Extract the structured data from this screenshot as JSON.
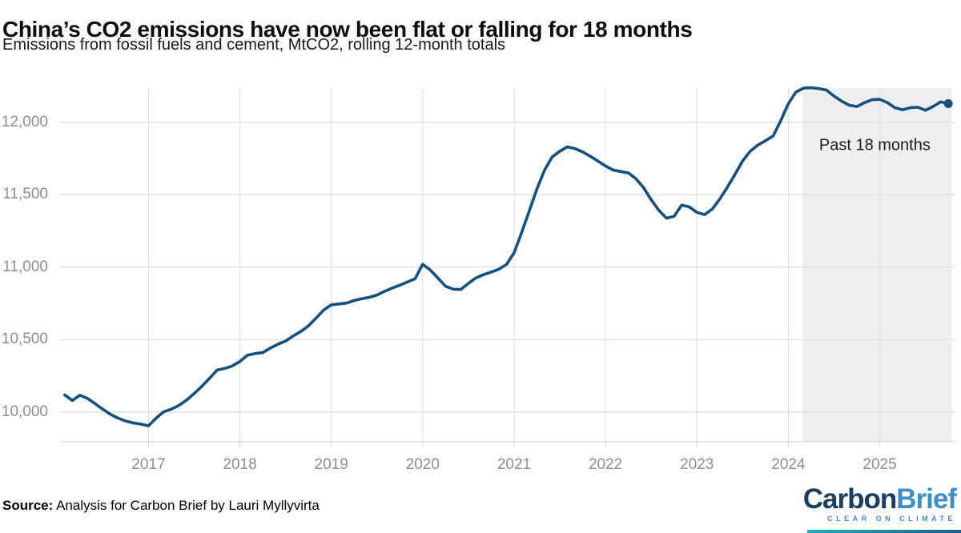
{
  "chart": {
    "title": "China’s CO2 emissions have now been flat or falling for 18 months",
    "subtitle": "Emissions from fossil fuels and cement, MtCO2, rolling 12-month totals",
    "annotation_label": "Past 18 months"
  },
  "footer": {
    "source_label": "Source:",
    "source_text": " Analysis for Carbon Brief by Lauri Myllyvirta"
  },
  "logo": {
    "word_dark": "Carbon",
    "word_light": "Brief",
    "tagline": "CLEAR ON CLIMATE",
    "color_dark": "#1b3e5f",
    "color_light": "#3f8dc6",
    "bar_gradient_left": "#19b4c8",
    "bar_gradient_right": "#1b5e93"
  },
  "chart_data": {
    "type": "line",
    "title": "China’s CO2 emissions have now been flat or falling for 18 months",
    "subtitle": "Emissions from fossil fuels and cement, MtCO2, rolling 12-month totals",
    "ylabel": "MtCO2, rolling 12-month total",
    "xlabel": "",
    "grid": true,
    "legend": "none",
    "line_color": "#15507e",
    "shade_color": "#eeeeee",
    "ylim": [
      9800,
      12280
    ],
    "xlim": [
      2016.03,
      2025.83
    ],
    "y_ticks": [
      {
        "value": 10000,
        "label": "10,000"
      },
      {
        "value": 10500,
        "label": "10,500"
      },
      {
        "value": 11000,
        "label": "11,000"
      },
      {
        "value": 11500,
        "label": "11,500"
      },
      {
        "value": 12000,
        "label": "12,000"
      }
    ],
    "x_ticks": [
      {
        "value": 2017,
        "label": "2017"
      },
      {
        "value": 2018,
        "label": "2018"
      },
      {
        "value": 2019,
        "label": "2019"
      },
      {
        "value": 2020,
        "label": "2020"
      },
      {
        "value": 2021,
        "label": "2021"
      },
      {
        "value": 2022,
        "label": "2022"
      },
      {
        "value": 2023,
        "label": "2023"
      },
      {
        "value": 2024,
        "label": "2024"
      },
      {
        "value": 2025,
        "label": "2025"
      }
    ],
    "highlight_region": {
      "label": "Past 18 months",
      "start": 2024.155,
      "end": 2025.79
    },
    "end_marker": true,
    "series": [
      {
        "name": "CO2 emissions from fossil fuels and cement (MtCO2, rolling 12-month total)",
        "points": [
          [
            2016.0833,
            10118
          ],
          [
            2016.1667,
            10080
          ],
          [
            2016.25,
            10116
          ],
          [
            2016.3333,
            10094
          ],
          [
            2016.4167,
            10058
          ],
          [
            2016.5,
            10020
          ],
          [
            2016.5833,
            9985
          ],
          [
            2016.6667,
            9958
          ],
          [
            2016.75,
            9938
          ],
          [
            2016.8333,
            9925
          ],
          [
            2016.9167,
            9917
          ],
          [
            2017.0,
            9905
          ],
          [
            2017.0833,
            9958
          ],
          [
            2017.1667,
            10002
          ],
          [
            2017.25,
            10020
          ],
          [
            2017.3333,
            10046
          ],
          [
            2017.4167,
            10083
          ],
          [
            2017.5,
            10128
          ],
          [
            2017.5833,
            10178
          ],
          [
            2017.6667,
            10232
          ],
          [
            2017.75,
            10290
          ],
          [
            2017.8333,
            10301
          ],
          [
            2017.9167,
            10318
          ],
          [
            2018.0,
            10349
          ],
          [
            2018.0833,
            10392
          ],
          [
            2018.1667,
            10404
          ],
          [
            2018.25,
            10410
          ],
          [
            2018.3333,
            10442
          ],
          [
            2018.4167,
            10468
          ],
          [
            2018.5,
            10490
          ],
          [
            2018.5833,
            10525
          ],
          [
            2018.6667,
            10556
          ],
          [
            2018.75,
            10594
          ],
          [
            2018.8333,
            10648
          ],
          [
            2018.9167,
            10704
          ],
          [
            2019.0,
            10740
          ],
          [
            2019.0833,
            10746
          ],
          [
            2019.1667,
            10752
          ],
          [
            2019.25,
            10770
          ],
          [
            2019.3333,
            10782
          ],
          [
            2019.4167,
            10792
          ],
          [
            2019.5,
            10808
          ],
          [
            2019.5833,
            10833
          ],
          [
            2019.6667,
            10856
          ],
          [
            2019.75,
            10876
          ],
          [
            2019.8333,
            10898
          ],
          [
            2019.9167,
            10920
          ],
          [
            2020.0,
            11020
          ],
          [
            2020.0833,
            10980
          ],
          [
            2020.1667,
            10925
          ],
          [
            2020.25,
            10868
          ],
          [
            2020.3333,
            10848
          ],
          [
            2020.4167,
            10846
          ],
          [
            2020.5,
            10888
          ],
          [
            2020.5833,
            10926
          ],
          [
            2020.6667,
            10948
          ],
          [
            2020.75,
            10966
          ],
          [
            2020.8333,
            10986
          ],
          [
            2020.9167,
            11018
          ],
          [
            2021.0,
            11100
          ],
          [
            2021.0833,
            11240
          ],
          [
            2021.1667,
            11390
          ],
          [
            2021.25,
            11540
          ],
          [
            2021.3333,
            11670
          ],
          [
            2021.4167,
            11760
          ],
          [
            2021.5,
            11800
          ],
          [
            2021.5833,
            11830
          ],
          [
            2021.6667,
            11818
          ],
          [
            2021.75,
            11795
          ],
          [
            2021.8333,
            11765
          ],
          [
            2021.9167,
            11732
          ],
          [
            2022.0,
            11698
          ],
          [
            2022.0833,
            11670
          ],
          [
            2022.1667,
            11660
          ],
          [
            2022.25,
            11650
          ],
          [
            2022.3333,
            11610
          ],
          [
            2022.4167,
            11548
          ],
          [
            2022.5,
            11465
          ],
          [
            2022.5833,
            11392
          ],
          [
            2022.6667,
            11338
          ],
          [
            2022.75,
            11350
          ],
          [
            2022.8333,
            11428
          ],
          [
            2022.9167,
            11416
          ],
          [
            2023.0,
            11378
          ],
          [
            2023.0833,
            11362
          ],
          [
            2023.1667,
            11400
          ],
          [
            2023.25,
            11470
          ],
          [
            2023.3333,
            11552
          ],
          [
            2023.4167,
            11640
          ],
          [
            2023.5,
            11732
          ],
          [
            2023.5833,
            11800
          ],
          [
            2023.6667,
            11842
          ],
          [
            2023.75,
            11872
          ],
          [
            2023.8333,
            11905
          ],
          [
            2023.9167,
            12010
          ],
          [
            2024.0,
            12128
          ],
          [
            2024.0833,
            12208
          ],
          [
            2024.1667,
            12235
          ],
          [
            2024.25,
            12238
          ],
          [
            2024.3333,
            12232
          ],
          [
            2024.4167,
            12222
          ],
          [
            2024.5,
            12180
          ],
          [
            2024.5833,
            12145
          ],
          [
            2024.6667,
            12117
          ],
          [
            2024.75,
            12108
          ],
          [
            2024.8333,
            12135
          ],
          [
            2024.9167,
            12155
          ],
          [
            2025.0,
            12158
          ],
          [
            2025.0833,
            12136
          ],
          [
            2025.1667,
            12100
          ],
          [
            2025.25,
            12086
          ],
          [
            2025.3333,
            12100
          ],
          [
            2025.4167,
            12103
          ],
          [
            2025.5,
            12082
          ],
          [
            2025.5833,
            12108
          ],
          [
            2025.6667,
            12140
          ],
          [
            2025.75,
            12128
          ]
        ]
      }
    ]
  }
}
